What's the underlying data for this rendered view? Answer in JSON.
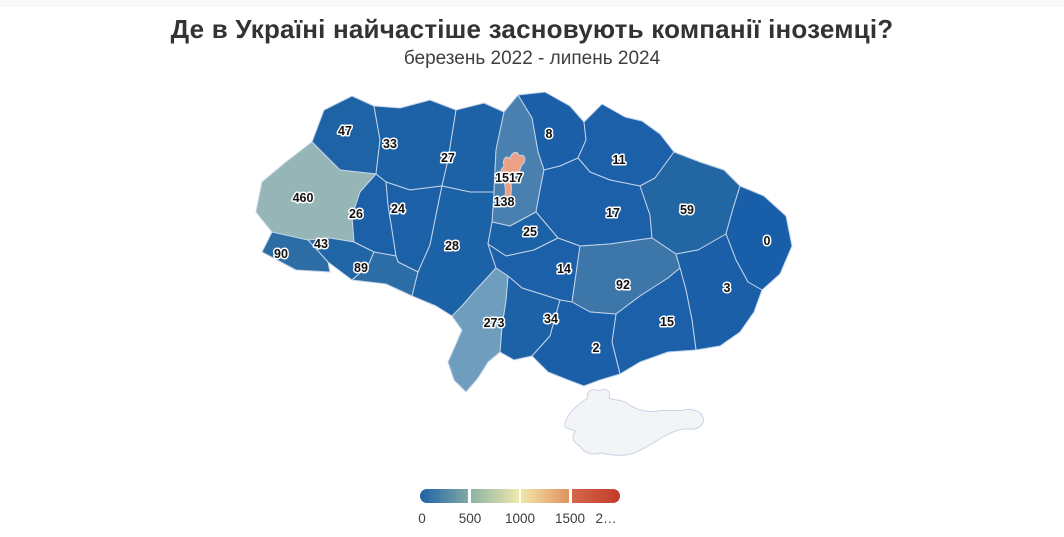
{
  "page": {
    "title": "Де в Україні найчастіше засновують компанії іноземці?",
    "subtitle": "березень 2022 - липень 2024"
  },
  "chart_data": {
    "type": "choropleth",
    "title": "Де в Україні найчастіше засновують компанії іноземці?",
    "subtitle": "березень 2022 - липень 2024",
    "region_border_color": "#c3d3e8",
    "label_style": {
      "fill": "#111111",
      "halo": "#ffffff"
    },
    "regions": [
      {
        "id": "volyn",
        "value": "47",
        "color": "#1e63a6"
      },
      {
        "id": "rivne",
        "value": "33",
        "color": "#1d62a7"
      },
      {
        "id": "zhytomyr",
        "value": "27",
        "color": "#1d62a7"
      },
      {
        "id": "chernihiv",
        "value": "8",
        "color": "#1a5fa8"
      },
      {
        "id": "sumy",
        "value": "11",
        "color": "#1b60a8"
      },
      {
        "id": "lviv",
        "value": "460",
        "color": "#95b5b6"
      },
      {
        "id": "kyiv-oblast",
        "value": "138",
        "color": "#4a80af"
      },
      {
        "id": "ternopil",
        "value": "26",
        "color": "#1c61a7"
      },
      {
        "id": "khmelnytskyi",
        "value": "24",
        "color": "#1c61a7"
      },
      {
        "id": "poltava",
        "value": "17",
        "color": "#1b60a8"
      },
      {
        "id": "kharkiv",
        "value": "59",
        "color": "#2267a3"
      },
      {
        "id": "luhansk",
        "value": "0",
        "color": "#195ea9"
      },
      {
        "id": "ivano-frankivsk",
        "value": "43",
        "color": "#2065a5"
      },
      {
        "id": "zakarpattia",
        "value": "90",
        "color": "#2c6da6"
      },
      {
        "id": "chernivtsi",
        "value": "89",
        "color": "#2c6da6"
      },
      {
        "id": "vinnytsia",
        "value": "28",
        "color": "#1c62a7"
      },
      {
        "id": "cherkasy",
        "value": "25",
        "color": "#1c62a7"
      },
      {
        "id": "kirovohrad",
        "value": "14",
        "color": "#1b60a8"
      },
      {
        "id": "dnipropetrovsk",
        "value": "92",
        "color": "#3d77aa"
      },
      {
        "id": "donetsk",
        "value": "3",
        "color": "#1a5fa8"
      },
      {
        "id": "zaporizhzhia",
        "value": "15",
        "color": "#1b60a8"
      },
      {
        "id": "mykolaiv",
        "value": "34",
        "color": "#1d62a7"
      },
      {
        "id": "odesa",
        "value": "273",
        "color": "#6f9dbe"
      },
      {
        "id": "kherson",
        "value": "2",
        "color": "#1a5fa8"
      },
      {
        "id": "kyiv-city",
        "value": "1517",
        "color": "#eca184"
      }
    ],
    "no_data_region": {
      "id": "crimea",
      "fill": "#f3f4f6",
      "stroke": "#c9d3e8"
    },
    "legend": {
      "ticks": [
        "0",
        "500",
        "1000",
        "1500",
        "2…"
      ],
      "tick_color": "#3c3c3c",
      "segments": [
        {
          "from": "#1e61a6",
          "to": "#7fa8a4"
        },
        {
          "from": "#8db2a6",
          "to": "#ede9ad"
        },
        {
          "from": "#f0e6a8",
          "to": "#e0935f"
        },
        {
          "from": "#d4674b",
          "to": "#c13b2c"
        }
      ]
    }
  }
}
